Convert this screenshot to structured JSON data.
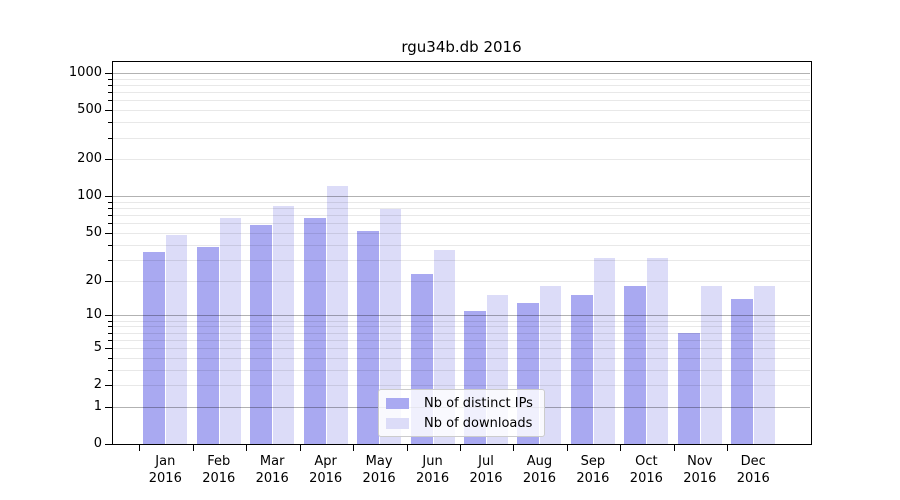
{
  "figure": {
    "title": "rgu34b.db 2016"
  },
  "legend": {
    "items": [
      {
        "label": "Nb of distinct IPs",
        "color": "#a9a9f1"
      },
      {
        "label": "Nb of downloads",
        "color": "#dcdcf8"
      }
    ]
  },
  "chart_data": {
    "type": "bar",
    "title": "rgu34b.db 2016",
    "x_tick_months": [
      "Jan",
      "Feb",
      "Mar",
      "Apr",
      "May",
      "Jun",
      "Jul",
      "Aug",
      "Sep",
      "Oct",
      "Nov",
      "Dec"
    ],
    "x_tick_year": "2016",
    "series": [
      {
        "name": "Nb of distinct IPs",
        "color": "#a9a9f1",
        "values": [
          35,
          38,
          58,
          67,
          52,
          23,
          11,
          13,
          15,
          18,
          7,
          14
        ]
      },
      {
        "name": "Nb of downloads",
        "color": "#dcdcf8",
        "values": [
          48,
          66,
          84,
          121,
          78,
          36,
          15,
          18,
          31,
          31,
          18,
          18
        ]
      }
    ],
    "yscale": "log10(value+1)",
    "ylim": [
      0,
      1200
    ],
    "yticks": [
      0,
      1,
      2,
      5,
      10,
      20,
      50,
      100,
      200,
      500,
      1000
    ],
    "ytick_labels": [
      "0",
      "1",
      "2",
      "5",
      "10",
      "20",
      "50",
      "100",
      "200",
      "500",
      "1000"
    ],
    "grid": "horizontal; dark major lines at 1,10,100,1000; light minor lines at 2-9 per decade",
    "legend_position": "inside plot, lower center-right"
  }
}
